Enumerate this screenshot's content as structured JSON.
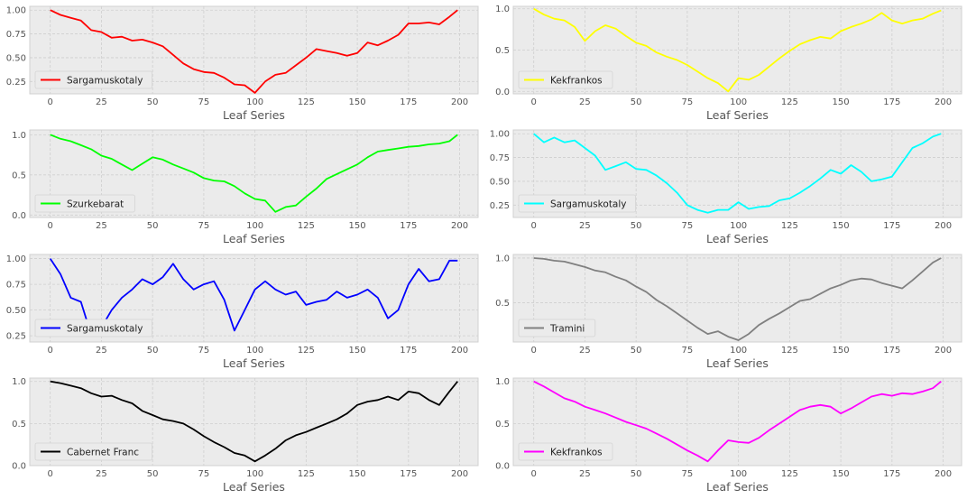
{
  "chart_data": [
    {
      "type": "line",
      "xlabel": "Leaf Series",
      "ylabel": "",
      "xlim": [
        -10,
        209
      ],
      "ylim": [
        0.12,
        1.04
      ],
      "xticks": [
        0,
        25,
        50,
        75,
        100,
        125,
        150,
        175,
        200
      ],
      "yticks": [
        0.25,
        0.5,
        0.75,
        1.0
      ],
      "ytick_labels": [
        "0.25",
        "0.50",
        "0.75",
        "1.00"
      ],
      "grid": true,
      "legend_position": "lower-left",
      "series": [
        {
          "name": "Sargamuskotaly",
          "color": "#ff0000",
          "x": [
            0,
            5,
            10,
            15,
            20,
            25,
            30,
            35,
            40,
            45,
            50,
            55,
            60,
            65,
            70,
            75,
            80,
            85,
            90,
            95,
            100,
            105,
            110,
            115,
            120,
            125,
            130,
            135,
            140,
            145,
            150,
            155,
            160,
            165,
            170,
            175,
            180,
            185,
            190,
            195,
            199
          ],
          "y": [
            1.0,
            0.95,
            0.92,
            0.89,
            0.79,
            0.77,
            0.71,
            0.72,
            0.68,
            0.69,
            0.66,
            0.62,
            0.53,
            0.44,
            0.38,
            0.35,
            0.34,
            0.29,
            0.22,
            0.21,
            0.13,
            0.25,
            0.32,
            0.34,
            0.42,
            0.5,
            0.59,
            0.57,
            0.55,
            0.52,
            0.55,
            0.66,
            0.63,
            0.68,
            0.74,
            0.86,
            0.86,
            0.87,
            0.85,
            0.93,
            1.0
          ]
        }
      ]
    },
    {
      "type": "line",
      "xlabel": "Leaf Series",
      "ylabel": "",
      "xlim": [
        -10,
        209
      ],
      "ylim": [
        -0.03,
        1.03
      ],
      "xticks": [
        0,
        25,
        50,
        75,
        100,
        125,
        150,
        175,
        200
      ],
      "yticks": [
        0.0,
        0.5,
        1.0
      ],
      "ytick_labels": [
        "0.0",
        "0.5",
        "1.0"
      ],
      "grid": true,
      "legend_position": "lower-left",
      "series": [
        {
          "name": "Kekfrankos",
          "color": "#ffff00",
          "x": [
            0,
            5,
            10,
            15,
            20,
            25,
            30,
            35,
            40,
            45,
            50,
            55,
            60,
            65,
            70,
            75,
            80,
            85,
            90,
            95,
            100,
            105,
            110,
            115,
            120,
            125,
            130,
            135,
            140,
            145,
            150,
            155,
            160,
            165,
            170,
            175,
            180,
            185,
            190,
            195,
            199
          ],
          "y": [
            1.0,
            0.93,
            0.88,
            0.86,
            0.78,
            0.61,
            0.73,
            0.8,
            0.76,
            0.67,
            0.59,
            0.55,
            0.47,
            0.42,
            0.38,
            0.32,
            0.24,
            0.16,
            0.1,
            0.0,
            0.16,
            0.14,
            0.2,
            0.3,
            0.4,
            0.49,
            0.57,
            0.62,
            0.66,
            0.64,
            0.73,
            0.78,
            0.82,
            0.87,
            0.95,
            0.86,
            0.82,
            0.86,
            0.88,
            0.94,
            0.98
          ]
        }
      ]
    },
    {
      "type": "line",
      "xlabel": "Leaf Series",
      "ylabel": "",
      "xlim": [
        -10,
        209
      ],
      "ylim": [
        -0.03,
        1.06
      ],
      "xticks": [
        0,
        25,
        50,
        75,
        100,
        125,
        150,
        175,
        200
      ],
      "yticks": [
        0.0,
        0.5,
        1.0
      ],
      "ytick_labels": [
        "0.0",
        "0.5",
        "1.0"
      ],
      "grid": true,
      "legend_position": "lower-left",
      "series": [
        {
          "name": "Szurkebarat",
          "color": "#00ff00",
          "x": [
            0,
            5,
            10,
            15,
            20,
            25,
            30,
            35,
            40,
            45,
            50,
            55,
            60,
            65,
            70,
            75,
            80,
            85,
            90,
            95,
            100,
            105,
            110,
            115,
            120,
            125,
            130,
            135,
            140,
            145,
            150,
            155,
            160,
            165,
            170,
            175,
            180,
            185,
            190,
            195,
            199
          ],
          "y": [
            1.0,
            0.95,
            0.92,
            0.87,
            0.82,
            0.74,
            0.7,
            0.63,
            0.56,
            0.64,
            0.72,
            0.69,
            0.63,
            0.58,
            0.53,
            0.46,
            0.43,
            0.42,
            0.36,
            0.27,
            0.2,
            0.18,
            0.04,
            0.1,
            0.12,
            0.23,
            0.33,
            0.45,
            0.51,
            0.57,
            0.63,
            0.72,
            0.79,
            0.81,
            0.83,
            0.85,
            0.86,
            0.88,
            0.89,
            0.92,
            1.0
          ]
        }
      ]
    },
    {
      "type": "line",
      "xlabel": "Leaf Series",
      "ylabel": "",
      "xlim": [
        -10,
        209
      ],
      "ylim": [
        0.12,
        1.04
      ],
      "xticks": [
        0,
        25,
        50,
        75,
        100,
        125,
        150,
        175,
        200
      ],
      "yticks": [
        0.25,
        0.5,
        0.75,
        1.0
      ],
      "ytick_labels": [
        "0.25",
        "0.50",
        "0.75",
        "1.00"
      ],
      "grid": true,
      "legend_position": "lower-left",
      "series": [
        {
          "name": "Sargamuskotaly",
          "color": "#00ffff",
          "x": [
            0,
            5,
            10,
            15,
            20,
            25,
            30,
            35,
            40,
            45,
            50,
            55,
            60,
            65,
            70,
            75,
            80,
            85,
            90,
            95,
            100,
            105,
            110,
            115,
            120,
            125,
            130,
            135,
            140,
            145,
            150,
            155,
            160,
            165,
            170,
            175,
            180,
            185,
            190,
            195,
            199
          ],
          "y": [
            1.0,
            0.91,
            0.96,
            0.91,
            0.93,
            0.85,
            0.77,
            0.62,
            0.66,
            0.7,
            0.63,
            0.62,
            0.56,
            0.48,
            0.38,
            0.25,
            0.2,
            0.17,
            0.2,
            0.2,
            0.28,
            0.21,
            0.23,
            0.24,
            0.3,
            0.32,
            0.38,
            0.45,
            0.53,
            0.62,
            0.58,
            0.67,
            0.6,
            0.5,
            0.52,
            0.55,
            0.7,
            0.85,
            0.9,
            0.97,
            1.0
          ]
        }
      ]
    },
    {
      "type": "line",
      "xlabel": "Leaf Series",
      "ylabel": "",
      "xlim": [
        -10,
        209
      ],
      "ylim": [
        0.19,
        1.04
      ],
      "xticks": [
        0,
        25,
        50,
        75,
        100,
        125,
        150,
        175,
        200
      ],
      "yticks": [
        0.25,
        0.5,
        0.75,
        1.0
      ],
      "ytick_labels": [
        "0.25",
        "0.50",
        "0.75",
        "1.00"
      ],
      "grid": true,
      "legend_position": "lower-left",
      "series": [
        {
          "name": "Sargamuskotaly",
          "color": "#0000ff",
          "x": [
            0,
            5,
            10,
            15,
            20,
            25,
            30,
            35,
            40,
            45,
            50,
            55,
            60,
            65,
            70,
            75,
            80,
            85,
            90,
            95,
            100,
            105,
            110,
            115,
            120,
            125,
            130,
            135,
            140,
            145,
            150,
            155,
            160,
            165,
            170,
            175,
            180,
            185,
            190,
            195,
            199
          ],
          "y": [
            1.0,
            0.85,
            0.62,
            0.58,
            0.26,
            0.33,
            0.5,
            0.62,
            0.7,
            0.8,
            0.75,
            0.82,
            0.95,
            0.8,
            0.7,
            0.75,
            0.78,
            0.6,
            0.3,
            0.5,
            0.7,
            0.78,
            0.7,
            0.65,
            0.68,
            0.55,
            0.58,
            0.6,
            0.68,
            0.62,
            0.65,
            0.7,
            0.62,
            0.42,
            0.5,
            0.75,
            0.9,
            0.78,
            0.8,
            0.98,
            0.98
          ]
        }
      ]
    },
    {
      "type": "line",
      "xlabel": "Leaf Series",
      "ylabel": "",
      "xlim": [
        -10,
        209
      ],
      "ylim": [
        0.06,
        1.04
      ],
      "xticks": [
        0,
        25,
        50,
        75,
        100,
        125,
        150,
        175,
        200
      ],
      "yticks": [
        0.5,
        1.0
      ],
      "ytick_labels": [
        "0.5",
        "1.0"
      ],
      "grid": true,
      "legend_position": "lower-left",
      "series": [
        {
          "name": "Tramini",
          "color": "#808080",
          "x": [
            0,
            5,
            10,
            15,
            20,
            25,
            30,
            35,
            40,
            45,
            50,
            55,
            60,
            65,
            70,
            75,
            80,
            85,
            90,
            95,
            100,
            105,
            110,
            115,
            120,
            125,
            130,
            135,
            140,
            145,
            150,
            155,
            160,
            165,
            170,
            175,
            180,
            185,
            190,
            195,
            199
          ],
          "y": [
            1.0,
            0.99,
            0.97,
            0.96,
            0.93,
            0.9,
            0.86,
            0.84,
            0.79,
            0.75,
            0.68,
            0.62,
            0.53,
            0.46,
            0.38,
            0.3,
            0.22,
            0.15,
            0.18,
            0.12,
            0.08,
            0.15,
            0.25,
            0.32,
            0.38,
            0.45,
            0.52,
            0.54,
            0.6,
            0.66,
            0.7,
            0.75,
            0.77,
            0.76,
            0.72,
            0.69,
            0.66,
            0.75,
            0.85,
            0.95,
            1.0
          ]
        }
      ]
    },
    {
      "type": "line",
      "xlabel": "Leaf Series",
      "ylabel": "",
      "xlim": [
        -10,
        209
      ],
      "ylim": [
        0.0,
        1.04
      ],
      "xticks": [
        0,
        25,
        50,
        75,
        100,
        125,
        150,
        175,
        200
      ],
      "yticks": [
        0.0,
        0.5,
        1.0
      ],
      "ytick_labels": [
        "0.0",
        "0.5",
        "1.0"
      ],
      "grid": true,
      "legend_position": "lower-left",
      "series": [
        {
          "name": "Cabernet Franc",
          "color": "#000000",
          "x": [
            0,
            5,
            10,
            15,
            20,
            25,
            30,
            35,
            40,
            45,
            50,
            55,
            60,
            65,
            70,
            75,
            80,
            85,
            90,
            95,
            100,
            105,
            110,
            115,
            120,
            125,
            130,
            135,
            140,
            145,
            150,
            155,
            160,
            165,
            170,
            175,
            180,
            185,
            190,
            195,
            199
          ],
          "y": [
            1.0,
            0.98,
            0.95,
            0.92,
            0.86,
            0.82,
            0.83,
            0.78,
            0.74,
            0.65,
            0.6,
            0.55,
            0.53,
            0.5,
            0.43,
            0.35,
            0.28,
            0.22,
            0.15,
            0.12,
            0.05,
            0.12,
            0.2,
            0.3,
            0.36,
            0.4,
            0.45,
            0.5,
            0.55,
            0.62,
            0.72,
            0.76,
            0.78,
            0.82,
            0.78,
            0.88,
            0.86,
            0.78,
            0.72,
            0.88,
            1.0
          ]
        }
      ]
    },
    {
      "type": "line",
      "xlabel": "Leaf Series",
      "ylabel": "",
      "xlim": [
        -10,
        209
      ],
      "ylim": [
        0.0,
        1.04
      ],
      "xticks": [
        0,
        25,
        50,
        75,
        100,
        125,
        150,
        175,
        200
      ],
      "yticks": [
        0.0,
        0.5,
        1.0
      ],
      "ytick_labels": [
        "0.0",
        "0.5",
        "1.0"
      ],
      "grid": true,
      "legend_position": "lower-left",
      "series": [
        {
          "name": "Kekfrankos",
          "color": "#ff00ff",
          "x": [
            0,
            5,
            10,
            15,
            20,
            25,
            30,
            35,
            40,
            45,
            50,
            55,
            60,
            65,
            70,
            75,
            80,
            85,
            90,
            95,
            100,
            105,
            110,
            115,
            120,
            125,
            130,
            135,
            140,
            145,
            150,
            155,
            160,
            165,
            170,
            175,
            180,
            185,
            190,
            195,
            199
          ],
          "y": [
            1.0,
            0.94,
            0.87,
            0.8,
            0.76,
            0.7,
            0.66,
            0.62,
            0.57,
            0.52,
            0.48,
            0.44,
            0.38,
            0.32,
            0.25,
            0.18,
            0.12,
            0.05,
            0.18,
            0.3,
            0.28,
            0.27,
            0.33,
            0.42,
            0.5,
            0.58,
            0.66,
            0.7,
            0.72,
            0.7,
            0.62,
            0.68,
            0.75,
            0.82,
            0.85,
            0.83,
            0.86,
            0.85,
            0.88,
            0.92,
            1.0
          ]
        }
      ]
    }
  ]
}
